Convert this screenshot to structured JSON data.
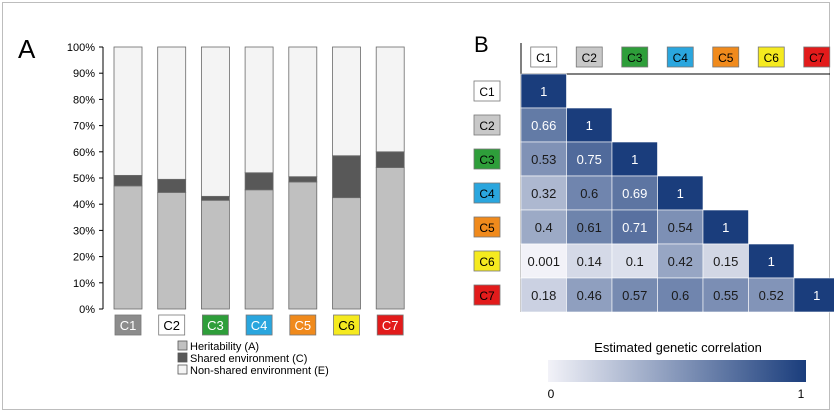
{
  "panels": {
    "a_label": "A",
    "b_label": "B"
  },
  "cohorts": [
    {
      "label": "C1",
      "color": "#8c8c8c",
      "text_color": "#ffffff"
    },
    {
      "label": "C2",
      "color": "#ffffff",
      "text_color": "#000000"
    },
    {
      "label": "C3",
      "color": "#2e9e3a",
      "text_color": "#ffffff"
    },
    {
      "label": "C4",
      "color": "#2aa6de",
      "text_color": "#ffffff"
    },
    {
      "label": "C5",
      "color": "#f08a1c",
      "text_color": "#ffffff"
    },
    {
      "label": "C6",
      "color": "#f5ea1f",
      "text_color": "#000000"
    },
    {
      "label": "C7",
      "color": "#e21b1b",
      "text_color": "#ffffff"
    }
  ],
  "heatmap_cohorts": [
    {
      "label": "C1",
      "color": "#ffffff",
      "text_color": "#000000"
    },
    {
      "label": "C2",
      "color": "#c8c8c8",
      "text_color": "#000000"
    },
    {
      "label": "C3",
      "color": "#2e9e3a",
      "text_color": "#000000"
    },
    {
      "label": "C4",
      "color": "#2aa6de",
      "text_color": "#000000"
    },
    {
      "label": "C5",
      "color": "#f08a1c",
      "text_color": "#000000"
    },
    {
      "label": "C6",
      "color": "#f5ea1f",
      "text_color": "#000000"
    },
    {
      "label": "C7",
      "color": "#e21b1b",
      "text_color": "#000000"
    }
  ],
  "chart_data": [
    {
      "type": "bar",
      "stacked": true,
      "categories": [
        "C1",
        "C2",
        "C3",
        "C4",
        "C5",
        "C6",
        "C7"
      ],
      "series": [
        {
          "name": "Heritability (A)",
          "color": "#c0c0c0",
          "values": [
            47,
            44.5,
            41.5,
            45.5,
            48.5,
            42.5,
            54
          ]
        },
        {
          "name": "Shared environment (C)",
          "color": "#585858",
          "values": [
            4,
            5,
            1.5,
            6.5,
            2,
            16,
            6
          ]
        },
        {
          "name": "Non-shared environment (E)",
          "color": "#f4f4f4",
          "values": [
            49,
            50.5,
            57,
            48,
            49.5,
            41.5,
            40
          ]
        }
      ],
      "yticks": [
        "0%",
        "10%",
        "20%",
        "30%",
        "40%",
        "50%",
        "60%",
        "70%",
        "80%",
        "90%",
        "100%"
      ],
      "ylim": [
        0,
        100
      ],
      "legend_position": "bottom"
    },
    {
      "type": "heatmap",
      "rows": [
        "C1",
        "C2",
        "C3",
        "C4",
        "C5",
        "C6",
        "C7"
      ],
      "columns": [
        "C1",
        "C2",
        "C3",
        "C4",
        "C5",
        "C6",
        "C7"
      ],
      "matrix": [
        [
          "1"
        ],
        [
          "0.66",
          "1"
        ],
        [
          "0.53",
          "0.75",
          "1"
        ],
        [
          "0.32",
          "0.6",
          "0.69",
          "1"
        ],
        [
          "0.4",
          "0.61",
          "0.71",
          "0.54",
          "1"
        ],
        [
          "0.001",
          "0.14",
          "0.1",
          "0.42",
          "0.15",
          "1"
        ],
        [
          "0.18",
          "0.46",
          "0.57",
          "0.6",
          "0.55",
          "0.52",
          "1"
        ]
      ],
      "colorbar": {
        "title": "Estimated genetic correlation",
        "min_label": "0",
        "max_label": "1",
        "low_color": "#f2f2f8",
        "high_color": "#1a3d7c"
      }
    }
  ]
}
